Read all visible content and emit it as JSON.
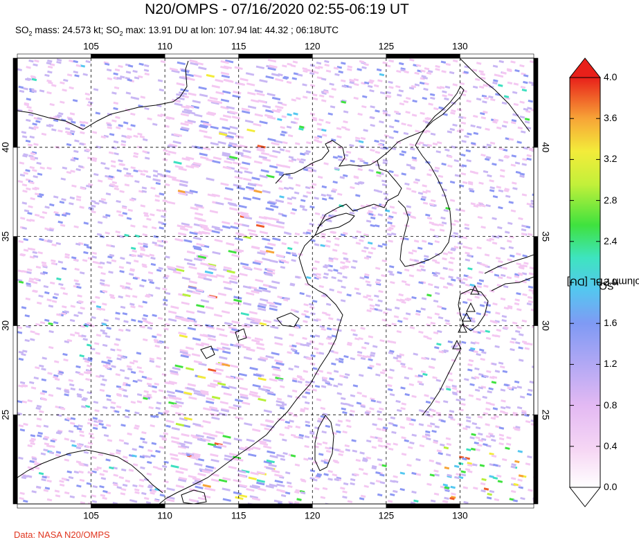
{
  "title": "N20/OMPS - 07/16/2020 02:55-06:19 UT",
  "subtitle": {
    "so2_prefix": "SO",
    "mass_text": " mass: 24.573 kt; SO",
    "max_text": " max: 13.91 DU at lon: 107.94 lat: 44.32 ; 06:18UTC",
    "sub2": "2"
  },
  "credit": "Data: NASA N20/OMPS",
  "map": {
    "lon_ticks": [
      "105",
      "110",
      "115",
      "120",
      "125",
      "130"
    ],
    "lat_ticks": [
      "40",
      "35",
      "30",
      "25"
    ],
    "lon_range": [
      100,
      135
    ],
    "lat_range": [
      20,
      45
    ],
    "gridline_style": "dashed"
  },
  "colorbar": {
    "title_main": "SO",
    "title_sub": "2",
    "title_rest": " column PBL [DU]",
    "labels": [
      "4.0",
      "3.6",
      "3.2",
      "2.8",
      "2.4",
      "2.0",
      "1.6",
      "1.2",
      "0.8",
      "0.4",
      "0.0"
    ],
    "range": [
      0.0,
      4.0
    ],
    "colors": [
      "#ffffff",
      "#f4c8f2",
      "#c9b7f4",
      "#8d98f4",
      "#55c8f0",
      "#3ee0c0",
      "#3fe23e",
      "#b7f03a",
      "#f3ec3a",
      "#f7a437",
      "#f05a2a",
      "#e8201a"
    ]
  }
}
